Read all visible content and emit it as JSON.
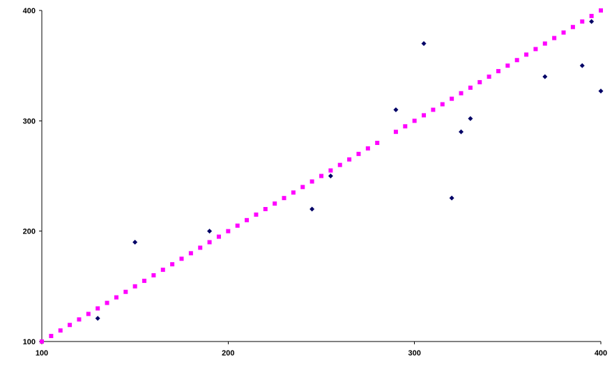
{
  "chart_data": {
    "type": "scatter",
    "xlim": [
      100,
      400
    ],
    "ylim": [
      100,
      400
    ],
    "x_ticks": [
      100,
      200,
      300,
      400
    ],
    "y_ticks": [
      100,
      200,
      300,
      400
    ],
    "x_tick_labels": [
      "100",
      "200",
      "300",
      "400"
    ],
    "y_tick_labels": [
      "100",
      "200",
      "300",
      "400"
    ],
    "grid": false,
    "legend": "none",
    "series": [
      {
        "marker": "diamond",
        "color": "#000066",
        "points": [
          [
            130,
            121
          ],
          [
            150,
            190
          ],
          [
            190,
            200
          ],
          [
            245,
            220
          ],
          [
            255,
            250
          ],
          [
            290,
            310
          ],
          [
            305,
            370
          ],
          [
            320,
            230
          ],
          [
            325,
            290
          ],
          [
            330,
            302
          ],
          [
            370,
            340
          ],
          [
            390,
            350
          ],
          [
            395,
            390
          ],
          [
            400,
            327
          ]
        ]
      },
      {
        "marker": "square",
        "color": "#ff00ff",
        "points": [
          [
            100,
            100
          ],
          [
            105,
            105
          ],
          [
            110,
            110
          ],
          [
            115,
            115
          ],
          [
            120,
            120
          ],
          [
            125,
            125
          ],
          [
            130,
            130
          ],
          [
            135,
            135
          ],
          [
            140,
            140
          ],
          [
            145,
            145
          ],
          [
            150,
            150
          ],
          [
            155,
            155
          ],
          [
            160,
            160
          ],
          [
            165,
            165
          ],
          [
            170,
            170
          ],
          [
            175,
            175
          ],
          [
            180,
            180
          ],
          [
            185,
            185
          ],
          [
            190,
            190
          ],
          [
            195,
            195
          ],
          [
            200,
            200
          ],
          [
            205,
            205
          ],
          [
            210,
            210
          ],
          [
            215,
            215
          ],
          [
            220,
            220
          ],
          [
            225,
            225
          ],
          [
            230,
            230
          ],
          [
            235,
            235
          ],
          [
            240,
            240
          ],
          [
            245,
            245
          ],
          [
            250,
            250
          ],
          [
            255,
            255
          ],
          [
            260,
            260
          ],
          [
            265,
            265
          ],
          [
            270,
            270
          ],
          [
            275,
            275
          ],
          [
            280,
            280
          ],
          [
            290,
            290
          ],
          [
            295,
            295
          ],
          [
            300,
            300
          ],
          [
            305,
            305
          ],
          [
            310,
            310
          ],
          [
            315,
            315
          ],
          [
            320,
            320
          ],
          [
            325,
            325
          ],
          [
            330,
            330
          ],
          [
            335,
            335
          ],
          [
            340,
            340
          ],
          [
            345,
            345
          ],
          [
            350,
            350
          ],
          [
            355,
            355
          ],
          [
            360,
            360
          ],
          [
            365,
            365
          ],
          [
            370,
            370
          ],
          [
            375,
            375
          ],
          [
            380,
            380
          ],
          [
            385,
            385
          ],
          [
            390,
            390
          ],
          [
            395,
            395
          ],
          [
            400,
            400
          ]
        ]
      }
    ]
  }
}
